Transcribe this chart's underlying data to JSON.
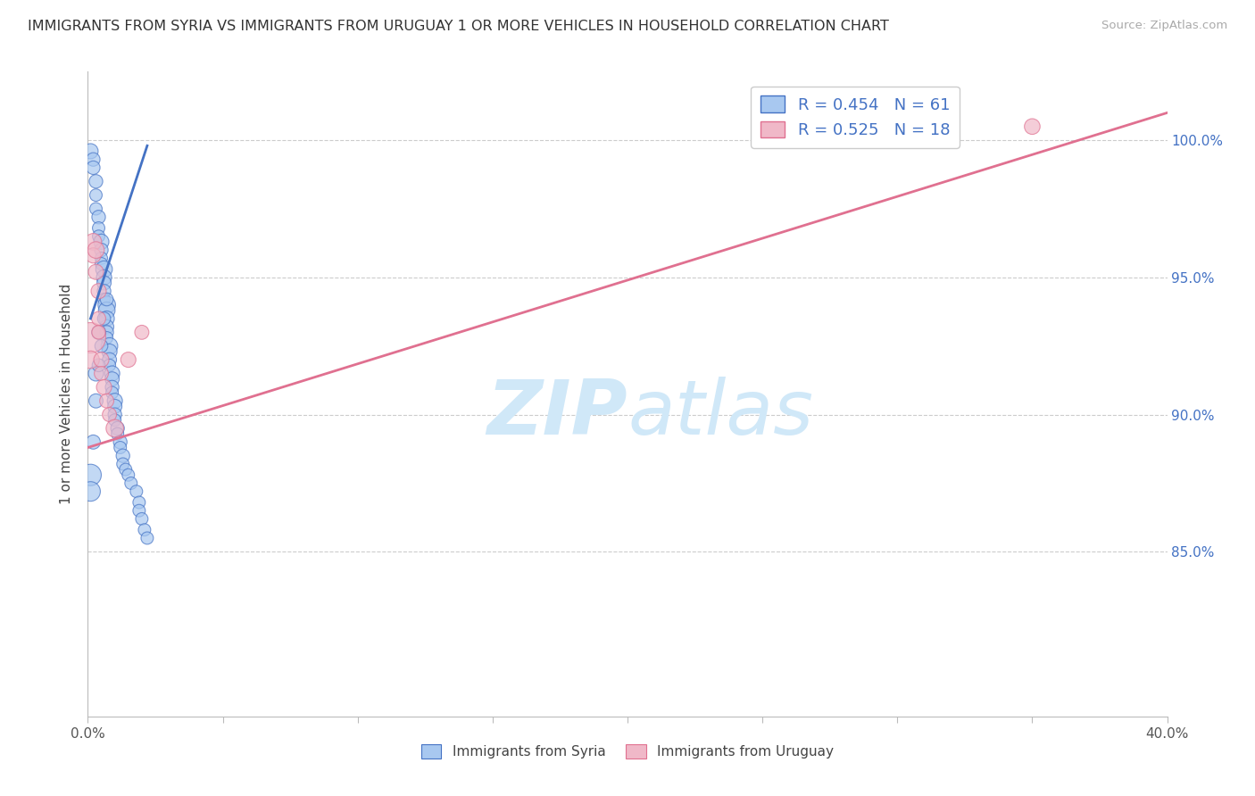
{
  "title": "IMMIGRANTS FROM SYRIA VS IMMIGRANTS FROM URUGUAY 1 OR MORE VEHICLES IN HOUSEHOLD CORRELATION CHART",
  "source": "Source: ZipAtlas.com",
  "ylabel": "1 or more Vehicles in Household",
  "xmin": 0.0,
  "xmax": 0.4,
  "ymin": 79.0,
  "ymax": 102.5,
  "yticks": [
    85.0,
    90.0,
    95.0,
    100.0
  ],
  "xticks": [
    0.0,
    0.05,
    0.1,
    0.15,
    0.2,
    0.25,
    0.3,
    0.35,
    0.4
  ],
  "xtick_labels": [
    "0.0%",
    "",
    "",
    "",
    "",
    "",
    "",
    "",
    "40.0%"
  ],
  "ytick_labels": [
    "85.0%",
    "90.0%",
    "95.0%",
    "100.0%"
  ],
  "legend_syria_R": "0.454",
  "legend_syria_N": "61",
  "legend_uruguay_R": "0.525",
  "legend_uruguay_N": "18",
  "color_syria": "#a8c8f0",
  "color_syria_line": "#4472c4",
  "color_uruguay": "#f0b8c8",
  "color_uruguay_line": "#e07090",
  "color_legend_text": "#4472c4",
  "watermark_color": "#d0e8f8",
  "syria_x": [
    0.001,
    0.002,
    0.002,
    0.003,
    0.003,
    0.003,
    0.004,
    0.004,
    0.004,
    0.005,
    0.005,
    0.005,
    0.005,
    0.006,
    0.006,
    0.006,
    0.006,
    0.006,
    0.007,
    0.007,
    0.007,
    0.007,
    0.007,
    0.007,
    0.008,
    0.008,
    0.008,
    0.008,
    0.009,
    0.009,
    0.009,
    0.009,
    0.01,
    0.01,
    0.01,
    0.01,
    0.011,
    0.011,
    0.012,
    0.012,
    0.013,
    0.013,
    0.014,
    0.015,
    0.016,
    0.018,
    0.019,
    0.019,
    0.02,
    0.021,
    0.022,
    0.001,
    0.001,
    0.002,
    0.003,
    0.003,
    0.004,
    0.004,
    0.005,
    0.006,
    0.007
  ],
  "syria_y": [
    99.6,
    99.3,
    99.0,
    98.5,
    98.0,
    97.5,
    97.2,
    96.8,
    96.5,
    96.3,
    96.0,
    95.7,
    95.5,
    95.3,
    95.0,
    94.8,
    94.5,
    94.2,
    94.0,
    93.8,
    93.5,
    93.2,
    93.0,
    92.8,
    92.5,
    92.3,
    92.0,
    91.8,
    91.5,
    91.3,
    91.0,
    90.8,
    90.5,
    90.3,
    90.0,
    89.8,
    89.5,
    89.3,
    89.0,
    88.8,
    88.5,
    88.2,
    88.0,
    87.8,
    87.5,
    87.2,
    86.8,
    86.5,
    86.2,
    85.8,
    85.5,
    87.8,
    87.2,
    89.0,
    91.5,
    90.5,
    93.0,
    91.8,
    92.5,
    93.5,
    94.2
  ],
  "syria_sizes": [
    150,
    120,
    120,
    120,
    100,
    100,
    120,
    100,
    100,
    150,
    120,
    100,
    100,
    180,
    150,
    130,
    120,
    100,
    200,
    180,
    150,
    130,
    120,
    100,
    180,
    150,
    130,
    100,
    150,
    130,
    120,
    100,
    150,
    130,
    120,
    100,
    120,
    100,
    120,
    100,
    120,
    100,
    100,
    100,
    100,
    100,
    100,
    100,
    100,
    100,
    100,
    300,
    250,
    130,
    150,
    130,
    130,
    110,
    110,
    110,
    110
  ],
  "uruguay_x": [
    0.001,
    0.001,
    0.002,
    0.002,
    0.003,
    0.003,
    0.004,
    0.004,
    0.004,
    0.005,
    0.005,
    0.006,
    0.007,
    0.008,
    0.01,
    0.015,
    0.02,
    0.35
  ],
  "uruguay_y": [
    92.8,
    92.0,
    96.3,
    95.8,
    96.0,
    95.2,
    94.5,
    93.5,
    93.0,
    92.0,
    91.5,
    91.0,
    90.5,
    90.0,
    89.5,
    92.0,
    93.0,
    100.5
  ],
  "uruguay_sizes": [
    600,
    200,
    180,
    150,
    180,
    150,
    150,
    130,
    120,
    150,
    130,
    150,
    130,
    130,
    200,
    150,
    130,
    160
  ],
  "blue_line_x1": 0.001,
  "blue_line_y1": 93.5,
  "blue_line_x2": 0.022,
  "blue_line_y2": 99.8,
  "pink_line_x1": 0.0,
  "pink_line_y1": 88.8,
  "pink_line_x2": 0.4,
  "pink_line_y2": 101.0
}
